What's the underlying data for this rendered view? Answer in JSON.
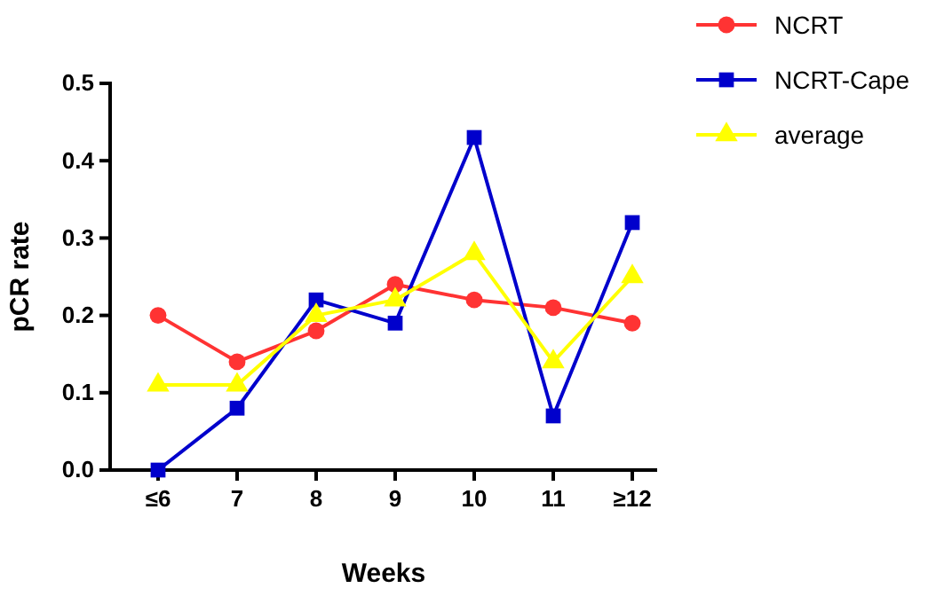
{
  "chart_data": {
    "type": "line",
    "xlabel": "Weeks",
    "ylabel": "pCR rate",
    "categories": [
      "≤6",
      "7",
      "8",
      "9",
      "10",
      "11",
      "≥12"
    ],
    "ylim": [
      0,
      0.5
    ],
    "yticks": [
      {
        "value": 0,
        "label": "0.0"
      },
      0.1,
      0.2,
      0.3,
      0.4,
      0.5
    ],
    "legend": "top right",
    "grid": false,
    "series": [
      {
        "name": "NCRT",
        "color": "#ff3333",
        "marker": "circle",
        "values": [
          0.2,
          0.14,
          0.18,
          0.24,
          0.22,
          0.21,
          0.19
        ]
      },
      {
        "name": "NCRT-Cape",
        "color": "#0000cc",
        "marker": "square",
        "values": [
          0.0,
          0.08,
          0.22,
          0.19,
          0.43,
          0.07,
          0.32
        ]
      },
      {
        "name": "average",
        "color": "#ffff00",
        "marker": "triangle",
        "values": [
          0.11,
          0.11,
          0.2,
          0.22,
          0.28,
          0.14,
          0.25
        ]
      }
    ]
  }
}
